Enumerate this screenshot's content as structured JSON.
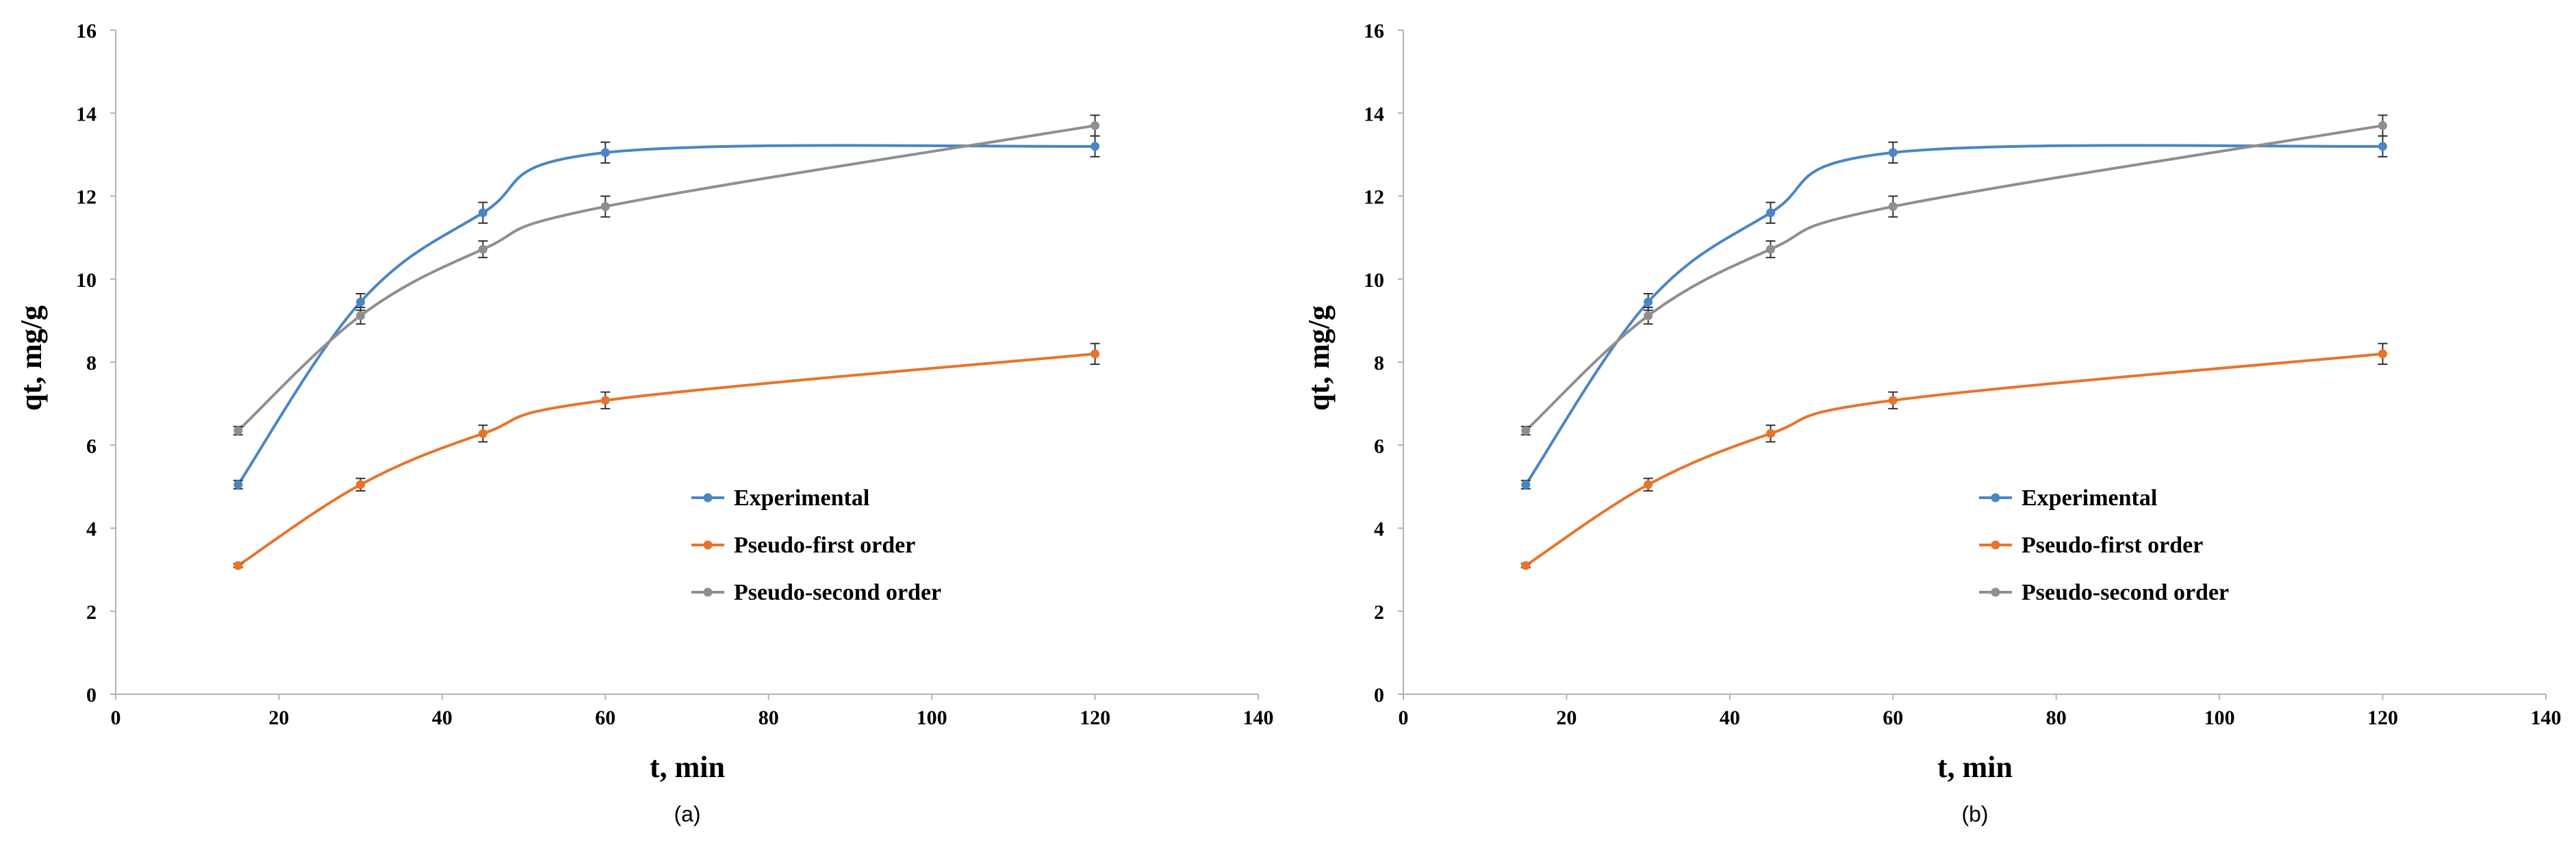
{
  "charts": [
    {
      "caption": "(a)",
      "chart_data": {
        "type": "line",
        "xlabel": "t, min",
        "ylabel": "qt, mg/g",
        "xlim": [
          0,
          140
        ],
        "ylim": [
          0,
          16
        ],
        "xticks": [
          0,
          20,
          40,
          60,
          80,
          100,
          120,
          140
        ],
        "yticks": [
          0,
          2,
          4,
          6,
          8,
          10,
          12,
          14,
          16
        ],
        "grid": false,
        "legend_position": "lower-right",
        "error_bars": true,
        "x": [
          15,
          30,
          45,
          60,
          120
        ],
        "series": [
          {
            "name": "Experimental",
            "color": "#4a86c5",
            "values": [
              5.05,
              9.45,
              11.6,
              13.05,
              13.2
            ],
            "errors": [
              0.1,
              0.2,
              0.25,
              0.25,
              0.25
            ]
          },
          {
            "name": "Pseudo-first order",
            "color": "#e8742c",
            "values": [
              3.1,
              5.05,
              6.28,
              7.08,
              8.2
            ],
            "errors": [
              0.05,
              0.15,
              0.2,
              0.2,
              0.25
            ]
          },
          {
            "name": "Pseudo-second order",
            "color": "#8f8f8f",
            "values": [
              6.35,
              9.12,
              10.72,
              11.75,
              13.7
            ],
            "errors": [
              0.1,
              0.2,
              0.2,
              0.25,
              0.25
            ]
          }
        ]
      }
    },
    {
      "caption": "(b)",
      "chart_data": {
        "type": "line",
        "xlabel": "t, min",
        "ylabel": "qt, mg/g",
        "xlim": [
          0,
          140
        ],
        "ylim": [
          0,
          16
        ],
        "xticks": [
          0,
          20,
          40,
          60,
          80,
          100,
          120,
          140
        ],
        "yticks": [
          0,
          2,
          4,
          6,
          8,
          10,
          12,
          14,
          16
        ],
        "grid": false,
        "legend_position": "lower-right",
        "error_bars": true,
        "x": [
          15,
          30,
          45,
          60,
          120
        ],
        "series": [
          {
            "name": "Experimental",
            "color": "#4a86c5",
            "values": [
              5.05,
              9.45,
              11.6,
              13.05,
              13.2
            ],
            "errors": [
              0.1,
              0.2,
              0.25,
              0.25,
              0.25
            ]
          },
          {
            "name": "Pseudo-first order",
            "color": "#e8742c",
            "values": [
              3.1,
              5.05,
              6.28,
              7.08,
              8.2
            ],
            "errors": [
              0.05,
              0.15,
              0.2,
              0.2,
              0.25
            ]
          },
          {
            "name": "Pseudo-second order",
            "color": "#8f8f8f",
            "values": [
              6.35,
              9.12,
              10.72,
              11.75,
              13.7
            ],
            "errors": [
              0.1,
              0.2,
              0.2,
              0.25,
              0.25
            ]
          }
        ]
      }
    }
  ]
}
